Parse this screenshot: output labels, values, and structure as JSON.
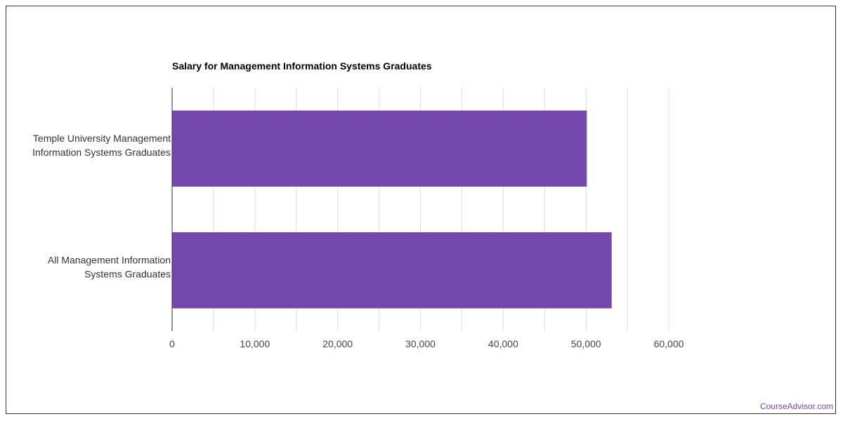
{
  "chart_data": {
    "type": "bar",
    "orientation": "horizontal",
    "title": "Salary for Management Information Systems Graduates",
    "categories": [
      [
        "Temple University Management",
        "Information Systems Graduates"
      ],
      [
        "All Management Information",
        "Systems Graduates"
      ]
    ],
    "values": [
      50100,
      53100
    ],
    "xlim": [
      0,
      60000
    ],
    "ticks": [
      0,
      10000,
      20000,
      30000,
      40000,
      50000,
      60000
    ],
    "tick_labels": [
      "0",
      "10,000",
      "20,000",
      "30,000",
      "40,000",
      "50,000",
      "60,000"
    ],
    "grid": true,
    "bar_color": "#7447ad"
  },
  "footer": {
    "credit": "CourseAdvisor.com"
  },
  "colors": {
    "credit": "#7447ad",
    "grid": "#dddddd",
    "axis": "#333333"
  }
}
